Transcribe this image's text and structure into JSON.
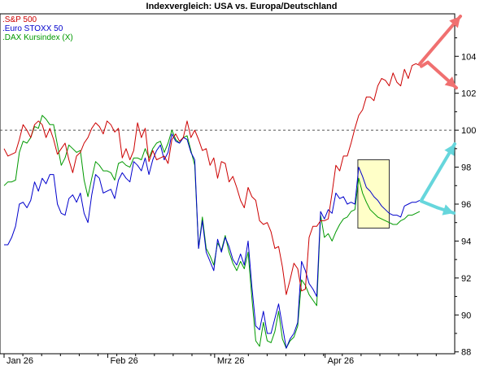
{
  "chart_data": {
    "type": "line",
    "title": "Indexvergleich: USA vs. Europa/Deutschland",
    "x_tick_labels": [
      "Jan 26",
      "Feb 26",
      "Mrz 26",
      "Apr 26"
    ],
    "y_ticks": [
      88,
      90,
      92,
      94,
      96,
      98,
      100,
      102,
      104
    ],
    "ylim": [
      87.9,
      106.3
    ],
    "y_axis_side": "right",
    "reference_line": 100,
    "legend_position": "top-left",
    "grid": false,
    "series": [
      {
        "name": ".S&P 500",
        "color": "#cc0000",
        "values": [
          99,
          98.6,
          98.7,
          98.8,
          99.5,
          100.3,
          100,
          99.6,
          100.3,
          100.5,
          100.3,
          99.6,
          100.1,
          99.5,
          98.7,
          99,
          99.3,
          98.4,
          97.7,
          98.6,
          98.8,
          99.3,
          99.6,
          100.1,
          100.4,
          100.2,
          99.8,
          100.5,
          100.3,
          99.9,
          100.1,
          98.5,
          99,
          98.4,
          98.9,
          100.4,
          99.6,
          100.1,
          98.3,
          98.9,
          98.4,
          98.5,
          98.6,
          98.2,
          99.5,
          99.8,
          99.4,
          99.6,
          100.5,
          99.6,
          100,
          99.5,
          98.9,
          99,
          98.1,
          98.5,
          97.4,
          98.3,
          98.2,
          97.2,
          97.5,
          96.9,
          96.2,
          95.8,
          96.9,
          96.4,
          96.2,
          95.1,
          94.9,
          95,
          94.5,
          93.6,
          93.7,
          92.6,
          91.1,
          91.9,
          92.8,
          92.5,
          91.3,
          91.4,
          94.2,
          94.8,
          94.8,
          95.1,
          95.1,
          95.2,
          96.6,
          98.1,
          97.8,
          98.6,
          98.6,
          99.3,
          100.1,
          100.8,
          101.1,
          101.8,
          101.8,
          101.6,
          102.4,
          102.8,
          102.7,
          102.4,
          103.1,
          102.6,
          102.4,
          103.3,
          102.8,
          103.5,
          103.6,
          103.5
        ]
      },
      {
        "name": ".Euro STOXX 50",
        "color": "#0000cc",
        "values": [
          93.8,
          93.8,
          94.2,
          94.8,
          96,
          96.1,
          95.8,
          96.2,
          97.2,
          96.7,
          97.4,
          97.1,
          97.6,
          97.6,
          96,
          95.5,
          95.4,
          96.3,
          96.5,
          96.1,
          96.6,
          95.5,
          95,
          96.5,
          97.6,
          97.4,
          96.6,
          96.7,
          96.8,
          96.3,
          97.3,
          97.7,
          97.4,
          97.2,
          98.3,
          98.1,
          97.8,
          98.5,
          97.6,
          98.4,
          98.9,
          99.2,
          98.4,
          98.8,
          99.8,
          99.4,
          99.3,
          99.6,
          99.5,
          98.8,
          98.4,
          93.6,
          95.1,
          93.4,
          92.9,
          92.4,
          94.1,
          93.4,
          94.2,
          93.7,
          93,
          92.7,
          93.3,
          92.7,
          94,
          91.5,
          89.4,
          89.2,
          90.2,
          89,
          89,
          89.8,
          90.6,
          89.4,
          88.2,
          88.7,
          89,
          89.6,
          92.9,
          92.4,
          91.7,
          91.4,
          91,
          95.6,
          95.2,
          95.7,
          95.5,
          96.6,
          96.3,
          96.4,
          96,
          96.1,
          96,
          98,
          97.5,
          96.9,
          96.7,
          96.4,
          96.2,
          95.9,
          95.7,
          95.5,
          95.4,
          95.4,
          95.3,
          95.9,
          96,
          96.1,
          96.1,
          96.2
        ]
      },
      {
        "name": ".DAX Kursindex (X)",
        "color": "#009900",
        "values": [
          97,
          97.2,
          97.2,
          97.3,
          98.8,
          99.4,
          99.3,
          99.6,
          100.2,
          100.1,
          100.8,
          100.6,
          100.3,
          100.3,
          99.2,
          98.1,
          98.5,
          99.2,
          99,
          98.8,
          98.9,
          97.3,
          96.4,
          97.4,
          98.3,
          98.1,
          97.8,
          97.8,
          97.7,
          97.3,
          98.2,
          98.3,
          98.1,
          98,
          98.5,
          98.5,
          98.4,
          99,
          98.5,
          99,
          99.3,
          99.4,
          98.8,
          99.3,
          100,
          99.5,
          99.3,
          99.6,
          99.7,
          98.9,
          98.1,
          93.6,
          95.3,
          93.6,
          93.2,
          92.7,
          93.9,
          93.5,
          94.3,
          93.4,
          92.8,
          92.4,
          92.9,
          92.5,
          93.4,
          90.9,
          88.6,
          88.3,
          89.6,
          88.6,
          88.5,
          89.1,
          90.2,
          88.7,
          88.2,
          88.6,
          88.8,
          89.4,
          91.9,
          91.6,
          91.1,
          90.8,
          90.5,
          95.4,
          94.2,
          94.4,
          94,
          94.5,
          94.9,
          95.2,
          95.3,
          95.6,
          95.7,
          97.4,
          96.6,
          96.1,
          95.7,
          95.5,
          95.3,
          95.2,
          95.1,
          95,
          94.9,
          94.9,
          95.1,
          95.2,
          95.4,
          95.4,
          95.5,
          95.6
        ]
      }
    ]
  },
  "annotations": {
    "highlight_box": {
      "x_start": 0.787,
      "x_end": 0.856,
      "y_low": 94.7,
      "y_high": 98.4,
      "fill": "#ffffc8",
      "stroke": "#333333"
    },
    "red_arrows": {
      "color": "#f07070",
      "directions": [
        "up-right",
        "down-right"
      ]
    },
    "cyan_arrows": {
      "color": "#66d6dc",
      "directions": [
        "up-right",
        "down-right"
      ]
    }
  }
}
